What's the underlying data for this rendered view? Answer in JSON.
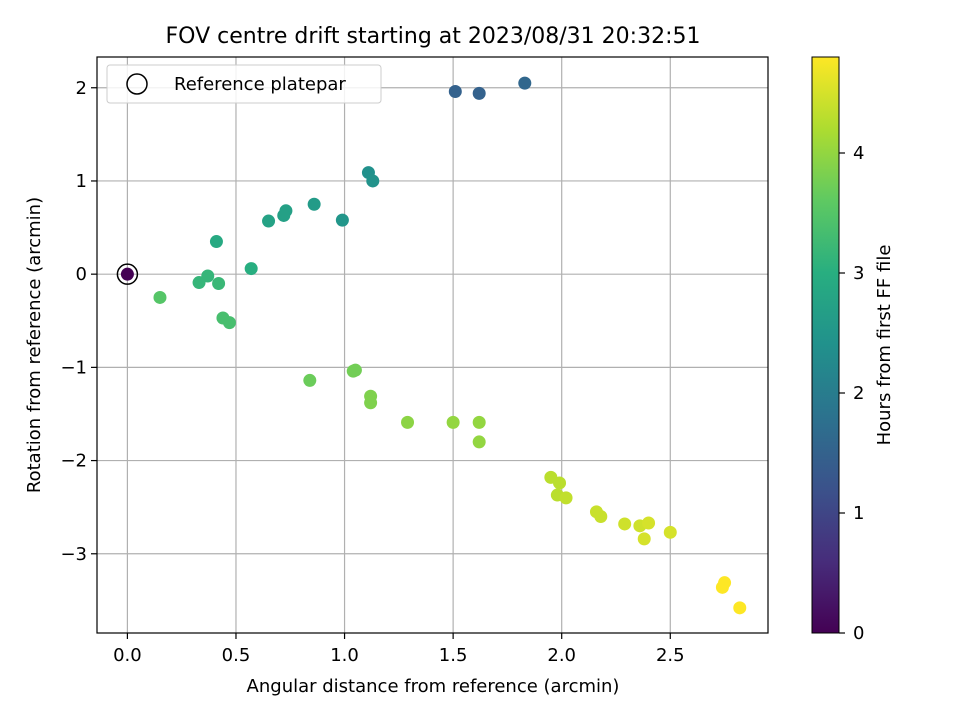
{
  "chart_data": {
    "type": "scatter",
    "title": "FOV centre drift starting at 2023/08/31 20:32:51",
    "xlabel": "Angular distance from reference (arcmin)",
    "ylabel": "Rotation from reference (arcmin)",
    "xlim": [
      -0.14,
      2.95
    ],
    "ylim": [
      -3.85,
      2.33
    ],
    "xticks": [
      0.0,
      0.5,
      1.0,
      1.5,
      2.0,
      2.5
    ],
    "xtick_labels": [
      "0.0",
      "0.5",
      "1.0",
      "1.5",
      "2.0",
      "2.5"
    ],
    "yticks": [
      -3,
      -2,
      -1,
      0,
      1,
      2
    ],
    "ytick_labels": [
      "−3",
      "−2",
      "−1",
      "0",
      "1",
      "2"
    ],
    "grid": true,
    "legend": {
      "position": "top-left",
      "entries": [
        "Reference platepar"
      ]
    },
    "colorbar": {
      "label": "Hours from first FF file",
      "min": 0,
      "max": 4.8,
      "ticks": [
        0,
        1,
        2,
        3,
        4
      ],
      "tick_labels": [
        "0",
        "1",
        "2",
        "3",
        "4"
      ],
      "colormap": "viridis"
    },
    "reference_point": {
      "x": 0.0,
      "y": 0.0,
      "hours": 0.0
    },
    "points": [
      {
        "x": 1.51,
        "y": 1.96,
        "hours": 1.5
      },
      {
        "x": 1.62,
        "y": 1.94,
        "hours": 1.5
      },
      {
        "x": 1.83,
        "y": 2.05,
        "hours": 1.6
      },
      {
        "x": 1.11,
        "y": 1.09,
        "hours": 2.4
      },
      {
        "x": 1.13,
        "y": 1.0,
        "hours": 2.45
      },
      {
        "x": 0.86,
        "y": 0.75,
        "hours": 2.6
      },
      {
        "x": 0.99,
        "y": 0.58,
        "hours": 2.5
      },
      {
        "x": 0.73,
        "y": 0.68,
        "hours": 2.7
      },
      {
        "x": 0.72,
        "y": 0.63,
        "hours": 2.7
      },
      {
        "x": 0.65,
        "y": 0.57,
        "hours": 2.75
      },
      {
        "x": 0.41,
        "y": 0.35,
        "hours": 2.9
      },
      {
        "x": 0.57,
        "y": 0.06,
        "hours": 3.0
      },
      {
        "x": 0.37,
        "y": -0.02,
        "hours": 3.15
      },
      {
        "x": 0.33,
        "y": -0.09,
        "hours": 3.15
      },
      {
        "x": 0.42,
        "y": -0.1,
        "hours": 3.2
      },
      {
        "x": 0.15,
        "y": -0.25,
        "hours": 3.5
      },
      {
        "x": 0.44,
        "y": -0.47,
        "hours": 3.35
      },
      {
        "x": 0.47,
        "y": -0.52,
        "hours": 3.35
      },
      {
        "x": 0.84,
        "y": -1.14,
        "hours": 3.7
      },
      {
        "x": 1.04,
        "y": -1.04,
        "hours": 3.75
      },
      {
        "x": 1.05,
        "y": -1.03,
        "hours": 3.75
      },
      {
        "x": 1.12,
        "y": -1.31,
        "hours": 3.85
      },
      {
        "x": 1.12,
        "y": -1.38,
        "hours": 3.85
      },
      {
        "x": 1.29,
        "y": -1.59,
        "hours": 3.95
      },
      {
        "x": 1.5,
        "y": -1.59,
        "hours": 4.0
      },
      {
        "x": 1.62,
        "y": -1.59,
        "hours": 4.0
      },
      {
        "x": 1.62,
        "y": -1.8,
        "hours": 4.0
      },
      {
        "x": 1.95,
        "y": -2.18,
        "hours": 4.3
      },
      {
        "x": 1.99,
        "y": -2.24,
        "hours": 4.3
      },
      {
        "x": 1.98,
        "y": -2.37,
        "hours": 4.3
      },
      {
        "x": 2.02,
        "y": -2.4,
        "hours": 4.35
      },
      {
        "x": 2.16,
        "y": -2.55,
        "hours": 4.4
      },
      {
        "x": 2.18,
        "y": -2.6,
        "hours": 4.4
      },
      {
        "x": 2.29,
        "y": -2.68,
        "hours": 4.45
      },
      {
        "x": 2.36,
        "y": -2.7,
        "hours": 4.45
      },
      {
        "x": 2.4,
        "y": -2.67,
        "hours": 4.5
      },
      {
        "x": 2.38,
        "y": -2.84,
        "hours": 4.5
      },
      {
        "x": 2.5,
        "y": -2.77,
        "hours": 4.5
      },
      {
        "x": 2.74,
        "y": -3.36,
        "hours": 4.8
      },
      {
        "x": 2.75,
        "y": -3.31,
        "hours": 4.8
      },
      {
        "x": 2.82,
        "y": -3.58,
        "hours": 4.8
      }
    ]
  }
}
